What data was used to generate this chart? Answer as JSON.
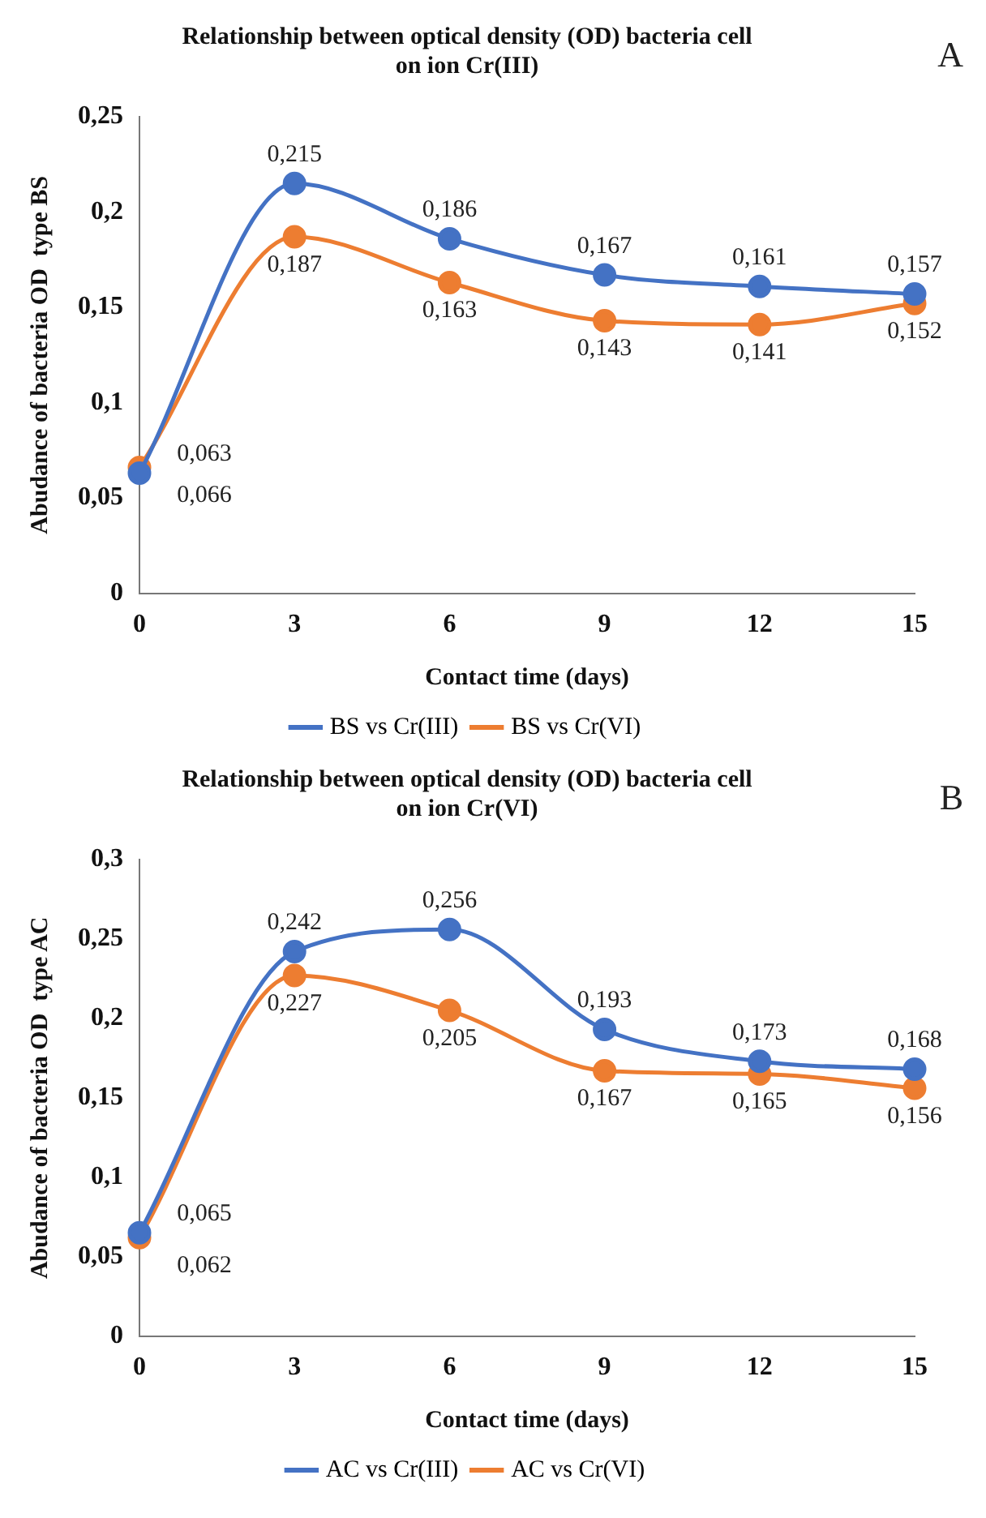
{
  "chart_data": [
    {
      "type": "line",
      "title": [
        "Relationship between optical density (OD) bacteria cell",
        "on ion Cr(III)"
      ],
      "annotations": [
        "A"
      ],
      "xlabel": "Contact time (days)",
      "ylabel": "Abudance of bacteria OD  type BS",
      "categories": [
        "0",
        "3",
        "6",
        "9",
        "12",
        "15"
      ],
      "series": [
        {
          "name": "BS vs Cr(III)",
          "color": "#4472c4",
          "values": [
            0.063,
            0.215,
            0.186,
            0.167,
            0.161,
            0.157
          ],
          "value_labels": [
            "0,063",
            "0,215",
            "0,186",
            "0,167",
            "0,161",
            "0,157"
          ]
        },
        {
          "name": "BS vs Cr(VI)",
          "color": "#ed7d31",
          "values": [
            0.066,
            0.187,
            0.163,
            0.143,
            0.141,
            0.152
          ],
          "value_labels": [
            "0,066",
            "0,187",
            "0,163",
            "0,143",
            "0,141",
            "0,152"
          ]
        }
      ],
      "ylim": [
        0,
        0.25
      ],
      "yticks": [
        0,
        {
          "value": 0.05,
          "label": "0,05"
        },
        {
          "value": 0.1,
          "label": "0,1"
        },
        {
          "value": 0.15,
          "label": "0,15"
        },
        {
          "value": 0.2,
          "label": "0,2"
        },
        {
          "value": 0.25,
          "label": "0,25"
        }
      ],
      "grid": false,
      "legend": "bottom",
      "marker": "circle",
      "line_style": "solid"
    },
    {
      "type": "line",
      "title": [
        "Relationship between optical density (OD) bacteria cell",
        "on ion Cr(VI)"
      ],
      "annotations": [
        "B"
      ],
      "xlabel": "Contact time (days)",
      "ylabel": "Abudance of bacteria OD  type AC",
      "categories": [
        "0",
        "3",
        "6",
        "9",
        "12",
        "15"
      ],
      "series": [
        {
          "name": "AC vs Cr(III)",
          "color": "#4472c4",
          "values": [
            0.065,
            0.242,
            0.256,
            0.193,
            0.173,
            0.168
          ],
          "value_labels": [
            "0,065",
            "0,242",
            "0,256",
            "0,193",
            "0,173",
            "0,168"
          ]
        },
        {
          "name": "AC vs Cr(VI)",
          "color": "#ed7d31",
          "values": [
            0.062,
            0.227,
            0.205,
            0.167,
            0.165,
            0.156
          ],
          "value_labels": [
            "0,062",
            "0,227",
            "0,205",
            "0,167",
            "0,165",
            "0,156"
          ]
        }
      ],
      "ylim": [
        0,
        0.3
      ],
      "yticks": [
        0,
        {
          "value": 0.05,
          "label": "0,05"
        },
        {
          "value": 0.1,
          "label": "0,1"
        },
        {
          "value": 0.15,
          "label": "0,15"
        },
        {
          "value": 0.2,
          "label": "0,2"
        },
        {
          "value": 0.25,
          "label": "0,25"
        },
        {
          "value": 0.3,
          "label": "0,3"
        }
      ],
      "grid": false,
      "legend": "bottom",
      "marker": "circle",
      "line_style": "solid"
    }
  ]
}
